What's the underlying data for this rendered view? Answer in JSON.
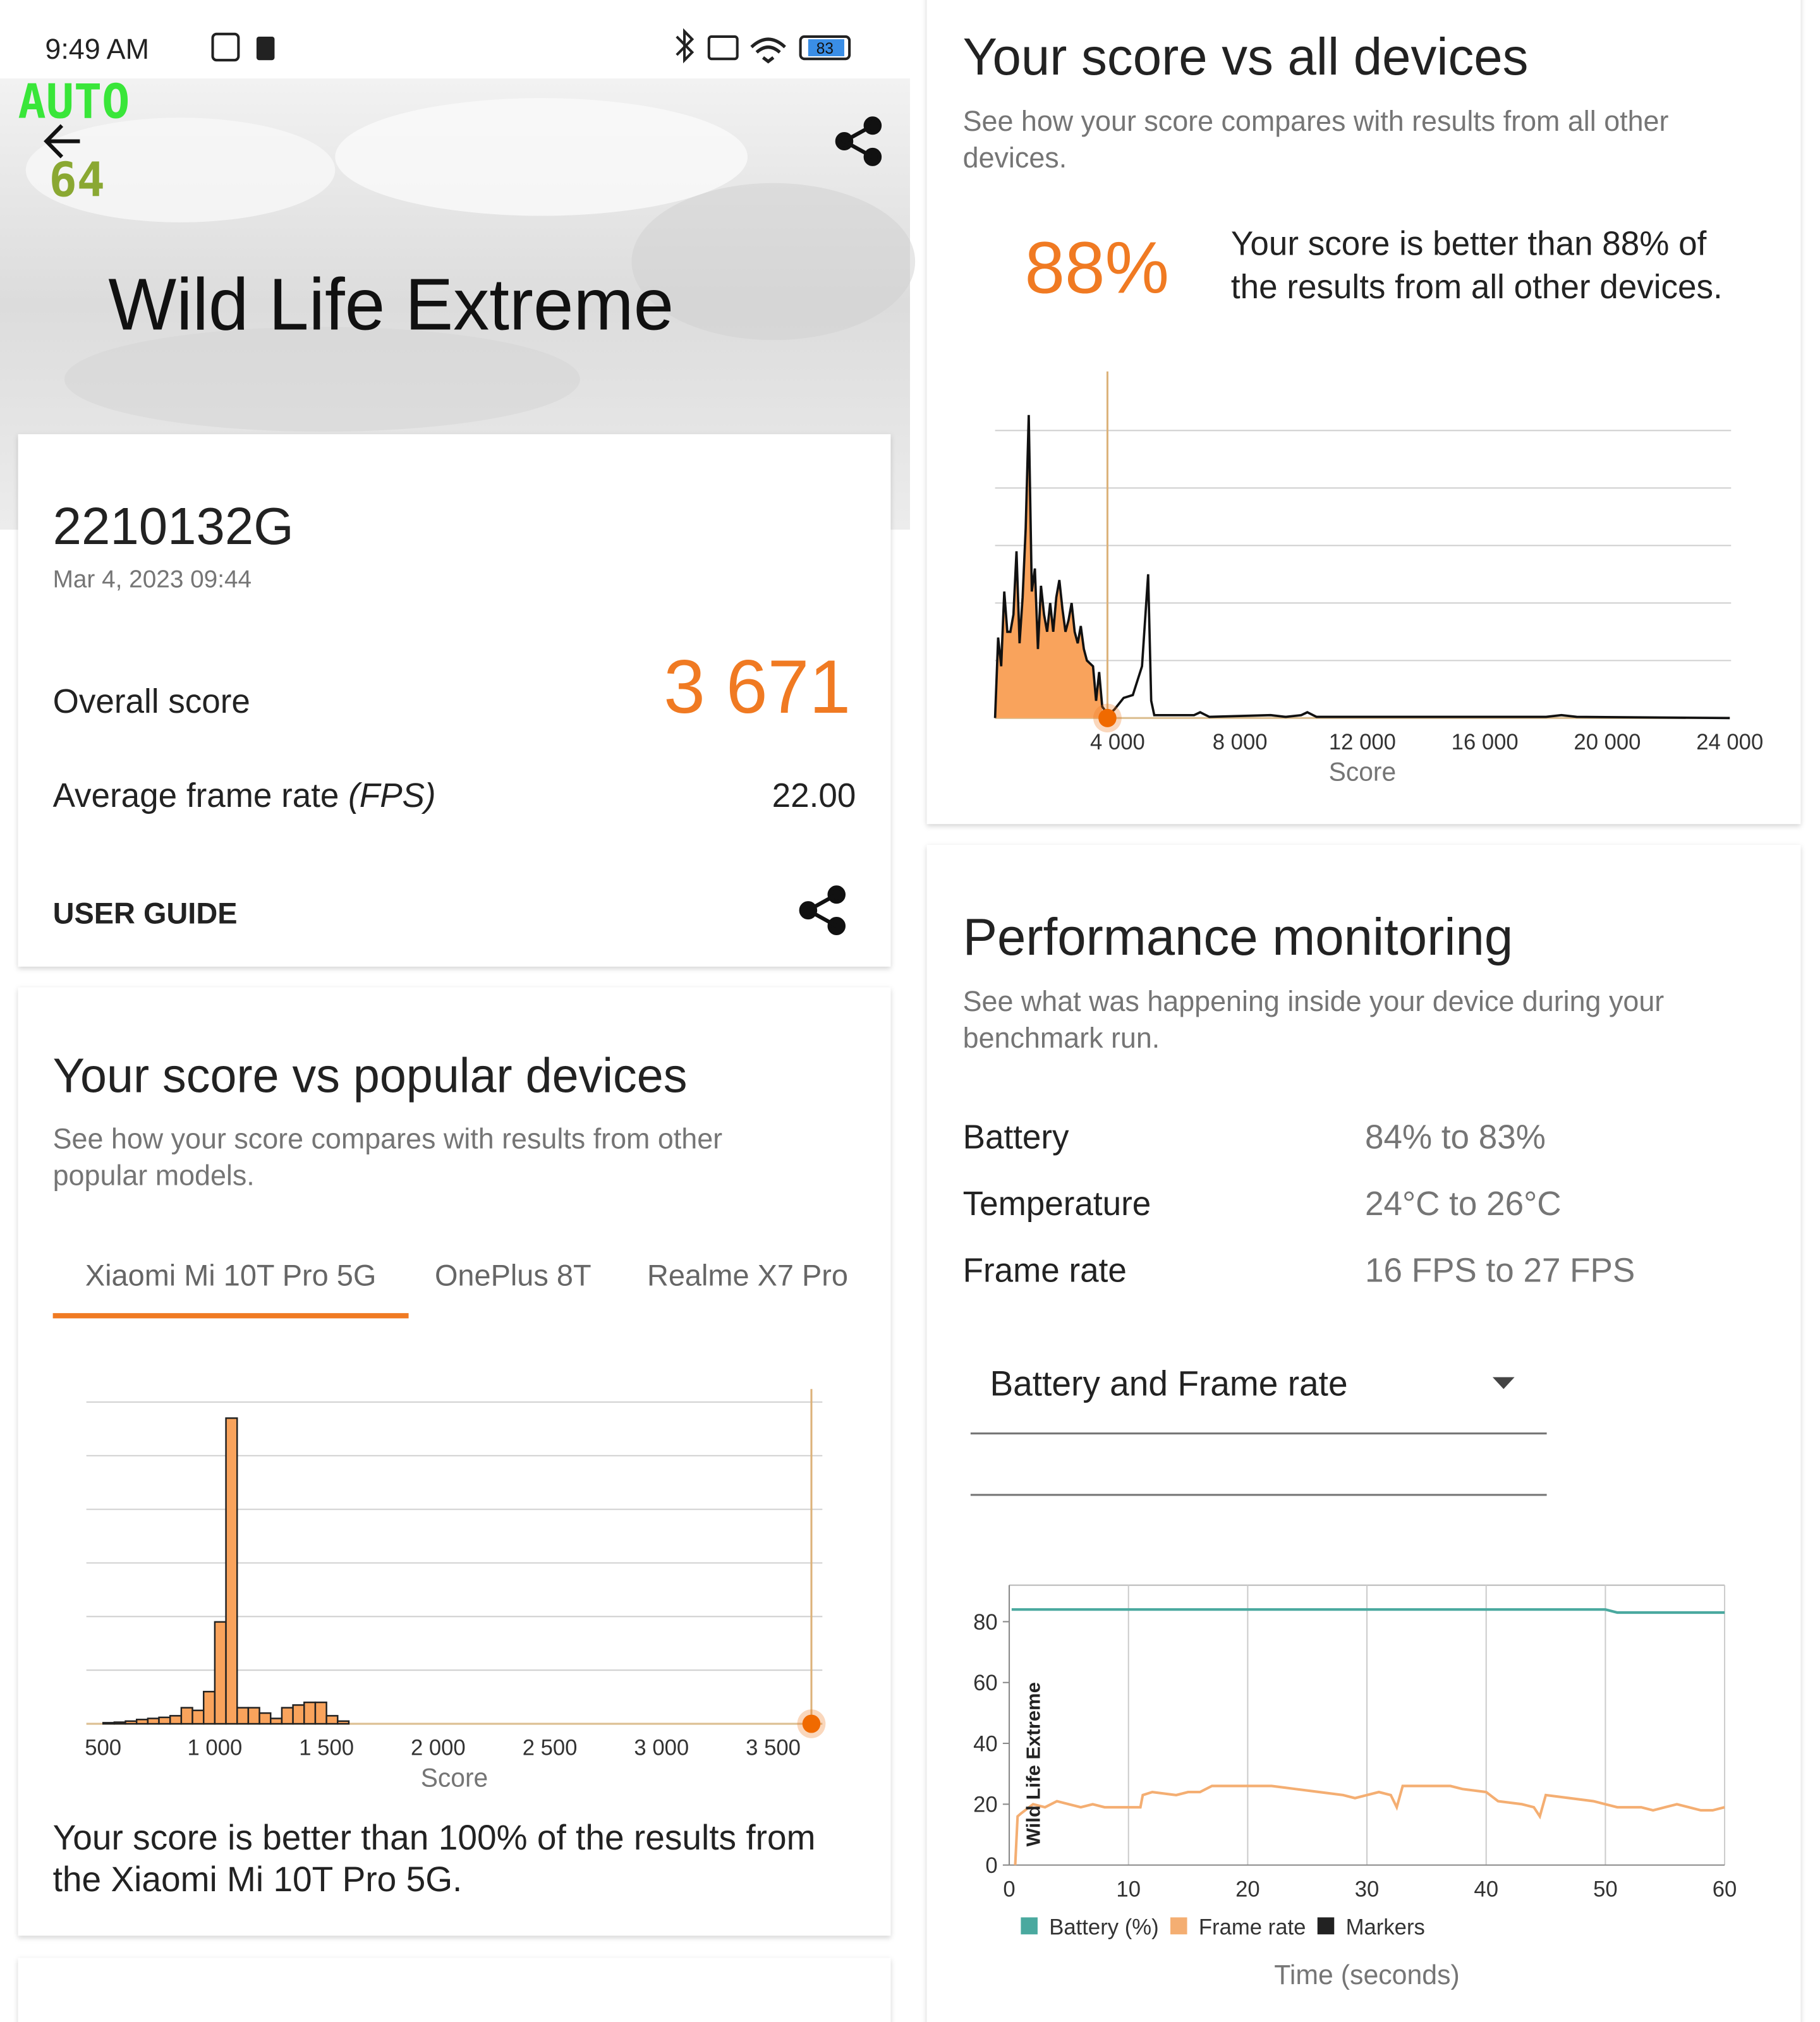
{
  "status_bar": {
    "time": "9:49 AM",
    "battery": "83"
  },
  "overlay": {
    "line1": "AUTO",
    "line2": "64"
  },
  "header": {
    "title": "Wild Life Extreme"
  },
  "result": {
    "device": "2210132G",
    "date": "Mar 4, 2023 09:44",
    "overall_label": "Overall score",
    "overall_value": "3 671",
    "fps_label": "Average frame rate ",
    "fps_unit": "(FPS)",
    "fps_value": "22.00",
    "user_guide": "USER GUIDE"
  },
  "popular": {
    "title": "Your score vs popular devices",
    "subtitle": [
      "See how your score compares with results from other",
      "popular models."
    ],
    "tabs": [
      "Xiaomi Mi 10T Pro 5G",
      "OnePlus 8T",
      "Realme X7 Pro"
    ],
    "chart": {
      "type": "histogram",
      "bins": [
        500,
        550,
        600,
        650,
        700,
        750,
        800,
        850,
        900,
        950,
        1000,
        1050,
        1100,
        1150,
        1200,
        1250,
        1300,
        1350,
        1400,
        1450,
        1500,
        1550,
        1600
      ],
      "counts": [
        0.02,
        0.03,
        0.05,
        0.08,
        0.1,
        0.12,
        0.15,
        0.3,
        0.25,
        0.6,
        1.9,
        5.7,
        0.3,
        0.3,
        0.2,
        0.1,
        0.3,
        0.35,
        0.4,
        0.4,
        0.15,
        0.05
      ],
      "color": "#f9a35c",
      "marker": 3671,
      "xlim": [
        425,
        3720
      ],
      "ylim": [
        0,
        6
      ],
      "xticks": [
        500,
        {
          "value": 1000,
          "label": "1 000"
        },
        {
          "value": 1500,
          "label": "1 500"
        },
        {
          "value": 2000,
          "label": "2 000"
        },
        {
          "value": 2500,
          "label": "2 500"
        },
        {
          "value": 3000,
          "label": "3 000"
        },
        {
          "value": 3500,
          "label": "3 500"
        }
      ],
      "x_label": "Score"
    },
    "summary": [
      "Your score is better than 100% of the results from",
      "the Xiaomi Mi 10T Pro 5G."
    ]
  },
  "all_devices": {
    "title": "Your score vs all devices",
    "subtitle": [
      "See how your score compares with results from all other",
      "devices."
    ],
    "percent": "88%",
    "summary": [
      "Your score is better than 88% of",
      "the results from all other devices."
    ],
    "chart": {
      "type": "area",
      "x": [
        0,
        100,
        200,
        300,
        400,
        500,
        600,
        700,
        800,
        900,
        1000,
        1100,
        1200,
        1300,
        1400,
        1500,
        1600,
        1700,
        1800,
        1900,
        2000,
        2100,
        2200,
        2300,
        2400,
        2500,
        2600,
        2700,
        2800,
        2900,
        3000,
        3200,
        3300,
        3400,
        3500,
        3700,
        3900,
        4200,
        4500,
        4800,
        5000,
        5100,
        5200,
        6500,
        6700,
        7000,
        9000,
        9500,
        10000,
        10200,
        10500,
        18000,
        18500,
        19000,
        24000
      ],
      "values": [
        0,
        1.4,
        0.9,
        2.2,
        1.5,
        1.5,
        1.8,
        2.9,
        1.3,
        2.1,
        3.3,
        5.27,
        2.2,
        2.6,
        1.2,
        2.3,
        1.8,
        1.5,
        2.0,
        1.5,
        2.1,
        2.4,
        1.9,
        1.5,
        1.7,
        2.0,
        1.5,
        1.3,
        1.6,
        1.2,
        1.0,
        0.9,
        0.3,
        0.8,
        0.2,
        0.05,
        0.15,
        0.35,
        0.4,
        0.9,
        2.5,
        0.3,
        0.05,
        0.05,
        0.1,
        0.02,
        0.05,
        0.02,
        0.05,
        0.1,
        0.02,
        0.02,
        0.05,
        0.02,
        0
      ],
      "color": "#111111",
      "fill_color": "#f9a35c",
      "marker": 3671,
      "xlim": [
        0,
        24000
      ],
      "ylim": [
        0,
        5.8
      ],
      "xticks": [
        {
          "value": 4000,
          "label": "4 000"
        },
        {
          "value": 8000,
          "label": "8 000"
        },
        {
          "value": 12000,
          "label": "12 000"
        },
        {
          "value": 16000,
          "label": "16 000"
        },
        {
          "value": 20000,
          "label": "20 000"
        },
        {
          "value": 24000,
          "label": "24 000"
        }
      ],
      "x_label": "Score"
    }
  },
  "monitoring": {
    "title": "Performance monitoring",
    "subtitle": [
      "See what was happening inside your device during your",
      "benchmark run."
    ],
    "rows": [
      [
        "Battery",
        "84% to 83%"
      ],
      [
        "Temperature",
        "24°C to 26°C"
      ],
      [
        "Frame rate",
        "16 FPS to 27 FPS"
      ]
    ],
    "dropdown": "Battery and Frame rate",
    "chart": {
      "type": "line",
      "series": [
        {
          "name": "Battery (%)",
          "color": "#4aa99f",
          "x": [
            0.2,
            50,
            51,
            60
          ],
          "values": [
            84,
            84,
            83,
            83
          ]
        },
        {
          "name": "Frame rate",
          "color": "#f4ae72",
          "x": [
            0.5,
            0.7,
            1,
            2,
            3,
            4,
            5,
            6,
            7,
            8,
            9,
            10,
            11,
            11.2,
            12,
            14,
            15,
            16,
            17,
            18,
            20,
            22,
            24,
            26,
            28,
            29,
            30,
            31,
            32,
            32.5,
            33,
            35,
            37,
            38,
            40,
            41,
            43,
            44,
            44.5,
            45,
            47,
            49,
            50,
            51,
            53,
            54,
            55,
            56,
            57,
            58,
            59,
            60
          ],
          "values": [
            0,
            16,
            17,
            20,
            19,
            21,
            20,
            19,
            20,
            19,
            19,
            19,
            19,
            23,
            24,
            23,
            24,
            24,
            26,
            26,
            26,
            26,
            25,
            24,
            23,
            22,
            23,
            24,
            23,
            19,
            26,
            26,
            26,
            25,
            24,
            21,
            20,
            19,
            16,
            23,
            22,
            21,
            20,
            19,
            19,
            18,
            19,
            20,
            19,
            18,
            18,
            19
          ]
        },
        {
          "name": "Markers",
          "color": "#222222",
          "x": [
            1.5
          ],
          "labels": [
            "Wild Life Extreme"
          ]
        }
      ],
      "xlim": [
        0,
        60
      ],
      "ylim": [
        0,
        92
      ],
      "xticks": [
        0,
        10,
        20,
        30,
        40,
        50,
        60
      ],
      "yticks": [
        0,
        20,
        40,
        60,
        80
      ],
      "grid": true,
      "x_label": "Time (seconds)"
    }
  }
}
